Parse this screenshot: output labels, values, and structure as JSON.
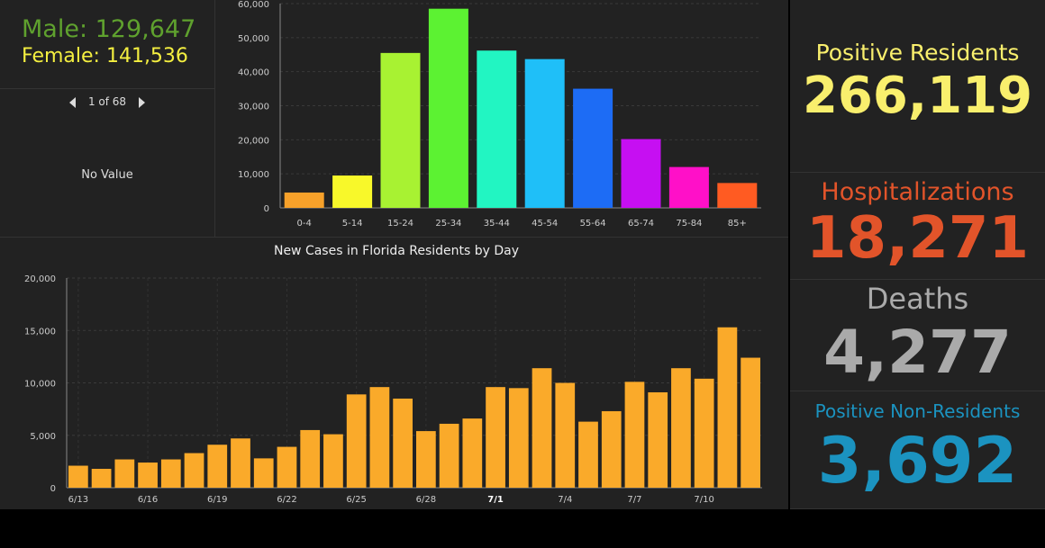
{
  "sex": {
    "male": "Male: 129,647",
    "female": "Female: 141,536"
  },
  "pager": {
    "text": "1 of 68",
    "no_value": "No Value"
  },
  "stats": {
    "positive_residents": {
      "label": "Positive Residents",
      "value": "266,119",
      "color": "#f9ef6d"
    },
    "hospitalizations": {
      "label": "Hospitalizations",
      "value": "18,271",
      "color": "#e2542a"
    },
    "deaths": {
      "label": "Deaths",
      "value": "4,277",
      "color": "#aaaaaa"
    },
    "non_residents": {
      "label": "Positive Non-Residents",
      "value": "3,692",
      "color": "#1b93c0"
    }
  },
  "chart_data": [
    {
      "type": "bar",
      "title": "",
      "categories": [
        "0-4",
        "5-14",
        "15-24",
        "25-34",
        "35-44",
        "45-54",
        "55-64",
        "65-74",
        "75-84",
        "85+"
      ],
      "values": [
        4500,
        9500,
        45500,
        58500,
        46200,
        43700,
        35000,
        20200,
        12000,
        7300
      ],
      "colors": [
        "#f7a12a",
        "#f8f82a",
        "#a8f232",
        "#5cf232",
        "#22f5c2",
        "#1fbff8",
        "#1d6cf5",
        "#c60ff2",
        "#ff10c8",
        "#ff5b22"
      ],
      "ylim": [
        0,
        60000
      ],
      "yticks": [
        "60,000",
        "50,000",
        "40,000",
        "30,000",
        "20,000",
        "10,000",
        "0"
      ],
      "ytick_values": [
        60000,
        50000,
        40000,
        30000,
        20000,
        10000,
        0
      ]
    },
    {
      "type": "bar",
      "title": "New Cases in Florida Residents by Day",
      "values": [
        2100,
        1800,
        2700,
        2400,
        2700,
        3300,
        4100,
        4700,
        2800,
        3900,
        5500,
        5100,
        8900,
        9600,
        8500,
        5400,
        6100,
        6600,
        9600,
        9500,
        11400,
        10000,
        6300,
        7300,
        10100,
        9100,
        11400,
        10400,
        15300,
        12400
      ],
      "color": "#faaa2a",
      "ylim": [
        0,
        20000
      ],
      "yticks": [
        "20,000",
        "15,000",
        "10,000",
        "5,000",
        "0"
      ],
      "ytick_values": [
        20000,
        15000,
        10000,
        5000,
        0
      ],
      "xtick_labels": [
        "6/13",
        "6/16",
        "6/19",
        "6/22",
        "6/25",
        "6/28",
        "7/1",
        "7/4",
        "7/7",
        "7/10"
      ],
      "xtick_indices": [
        0,
        3,
        6,
        9,
        12,
        15,
        18,
        21,
        24,
        27
      ],
      "bold_label": "7/1"
    }
  ]
}
